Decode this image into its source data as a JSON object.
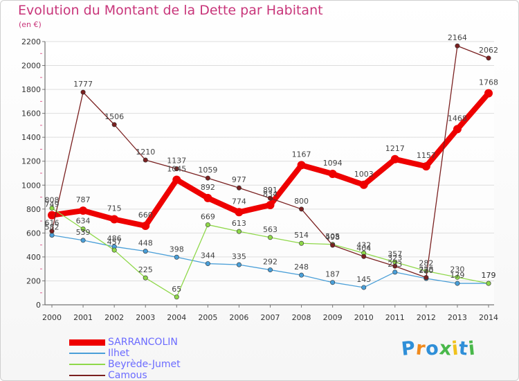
{
  "title": "Evolution du Montant de la Dette par Habitant",
  "unit": "(en €)",
  "brand": {
    "text": "Proxiti",
    "colors": [
      "#2f8fd8",
      "#f08a1d",
      "#2f8fd8",
      "#49b84a",
      "#f0c21d",
      "#2f8fd8",
      "#49b84a"
    ]
  },
  "chart_data": {
    "type": "line",
    "title": "Evolution du Montant de la Dette par Habitant",
    "ylabel": "(en €)",
    "ylim": [
      0,
      2200
    ],
    "yticks": [
      0,
      200,
      400,
      600,
      800,
      1000,
      1200,
      1400,
      1600,
      1800,
      2000,
      2200
    ],
    "x": [
      "2000",
      "2001",
      "2002",
      "2003",
      "2004",
      "2005",
      "2006",
      "2007",
      "2008",
      "2009",
      "2010",
      "2011",
      "2012",
      "2013",
      "2014"
    ],
    "grid": "horizontal",
    "legend_position": "bottom-left",
    "series": [
      {
        "name": "SARRANCOLIN",
        "color": "#ee0000",
        "width": "thick",
        "values": [
          749,
          787,
          715,
          660,
          1045,
          892,
          774,
          834,
          1167,
          1094,
          1003,
          1217,
          1157,
          1468,
          1768
        ],
        "labels": [
          "749",
          "787",
          "715",
          "660",
          "1045",
          "892",
          "774",
          "834",
          "1167",
          "1094",
          "1003",
          "1217",
          "1157",
          "1468",
          "1768"
        ]
      },
      {
        "name": "Ilhet",
        "color": "#4a9fd8",
        "width": "thin",
        "values": [
          582,
          539,
          486,
          448,
          398,
          344,
          335,
          292,
          248,
          187,
          145,
          273,
          220,
          179,
          179
        ],
        "labels": [
          "582",
          "539",
          "486",
          "448",
          "398",
          "344",
          "335",
          "292",
          "248",
          "187",
          "145",
          "273",
          "220",
          "179",
          "179"
        ]
      },
      {
        "name": "Beyrède-Jumet",
        "color": "#8fd84a",
        "width": "thin",
        "values": [
          808,
          634,
          457,
          225,
          65,
          669,
          613,
          563,
          514,
          505,
          432,
          357,
          282,
          230,
          179
        ],
        "labels": [
          "808",
          "634",
          "457",
          "225",
          "65",
          "669",
          "613",
          "563",
          "514",
          "505",
          "432",
          "357",
          "282",
          "230",
          "179"
        ]
      },
      {
        "name": "Camous",
        "color": "#7a2020",
        "width": "thin",
        "values": [
          616,
          1777,
          1506,
          1210,
          1137,
          1059,
          977,
          891,
          800,
          498,
          404,
          323,
          228,
          2164,
          2062
        ],
        "labels": [
          "616",
          "1777",
          "1506",
          "1210",
          "1137",
          "1059",
          "977",
          "891",
          "800",
          "498",
          "404",
          "323",
          "228",
          "2164",
          "2062"
        ]
      }
    ]
  }
}
